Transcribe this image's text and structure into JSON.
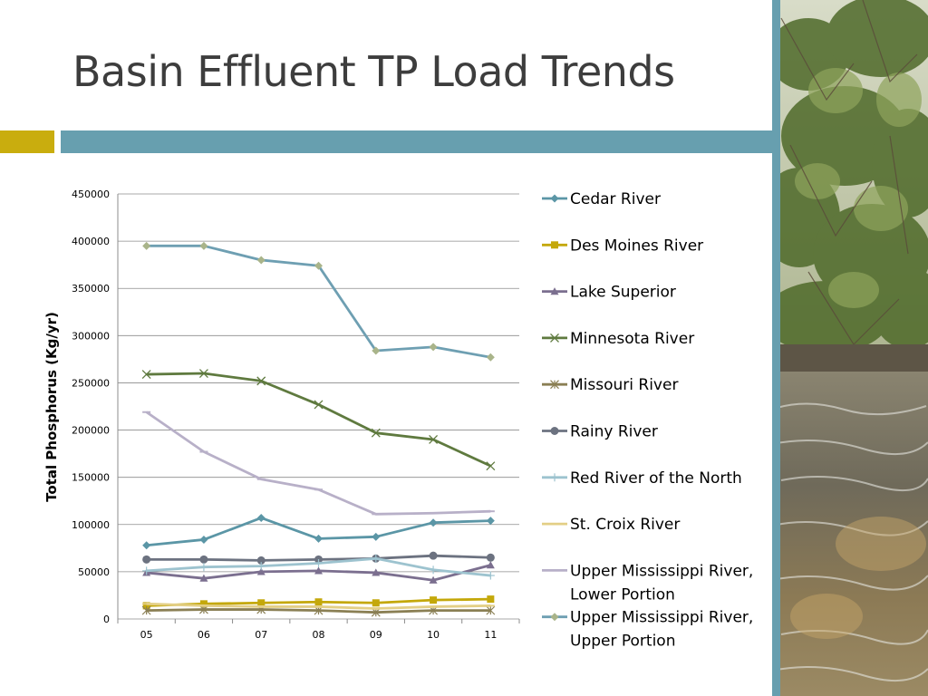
{
  "slide": {
    "title": "Basin Effluent TP Load Trends"
  },
  "colors": {
    "title": "#3d3d3d",
    "accent_gold": "#c9ad0e",
    "accent_teal": "#679faf"
  },
  "photo": {
    "icon": "river-landscape-photo"
  },
  "chart_data": {
    "type": "line",
    "title": "",
    "xlabel": "",
    "ylabel": "Total Phosphorus (Kg/yr)",
    "ylim": [
      0,
      450000
    ],
    "yticks": [
      "0",
      "50000",
      "100000",
      "150000",
      "200000",
      "250000",
      "300000",
      "350000",
      "400000",
      "450000"
    ],
    "categories": [
      "05",
      "06",
      "07",
      "08",
      "09",
      "10",
      "11"
    ],
    "grid": true,
    "legend_position": "right",
    "series": [
      {
        "name": "Cedar River",
        "color": "#5b96a6",
        "marker": "diamond",
        "values": [
          78000,
          84000,
          107000,
          85000,
          87000,
          102000,
          104000
        ]
      },
      {
        "name": "Des Moines River",
        "color": "#c4a80b",
        "marker": "square",
        "values": [
          14000,
          16000,
          17000,
          18000,
          17000,
          20000,
          21000
        ]
      },
      {
        "name": "Lake Superior",
        "color": "#7b6f8f",
        "marker": "triangle",
        "values": [
          49000,
          43000,
          50000,
          51000,
          49000,
          41000,
          57000
        ]
      },
      {
        "name": "Minnesota River",
        "color": "#5f7a3f",
        "marker": "x",
        "values": [
          259000,
          260000,
          252000,
          227000,
          197000,
          190000,
          162000
        ]
      },
      {
        "name": "Missouri River",
        "color": "#8a7f54",
        "marker": "star",
        "values": [
          9000,
          10000,
          10000,
          9000,
          7000,
          9000,
          9000
        ]
      },
      {
        "name": "Rainy River",
        "color": "#6c7280",
        "marker": "circle",
        "values": [
          63000,
          63000,
          62000,
          63000,
          64000,
          67000,
          65000
        ]
      },
      {
        "name": "Red River of the North",
        "color": "#9dc3cf",
        "marker": "plus",
        "values": [
          51000,
          55000,
          56000,
          59000,
          64000,
          52000,
          46000
        ]
      },
      {
        "name": "St. Croix River",
        "color": "#e3cf86",
        "marker": "dash",
        "values": [
          16000,
          14000,
          13000,
          13000,
          11000,
          13000,
          14000
        ]
      },
      {
        "name": "Upper Mississippi River, Lower Portion",
        "color": "#b8b0c8",
        "marker": "dash",
        "values": [
          219000,
          177000,
          148000,
          137000,
          111000,
          112000,
          114000
        ]
      },
      {
        "name": "Upper Mississippi River, Upper Portion",
        "color": "#6e9fb2",
        "marker": "diamond",
        "markerColor": "#a9b48a",
        "values": [
          395000,
          395000,
          380000,
          374000,
          284000,
          288000,
          277000
        ]
      }
    ]
  }
}
